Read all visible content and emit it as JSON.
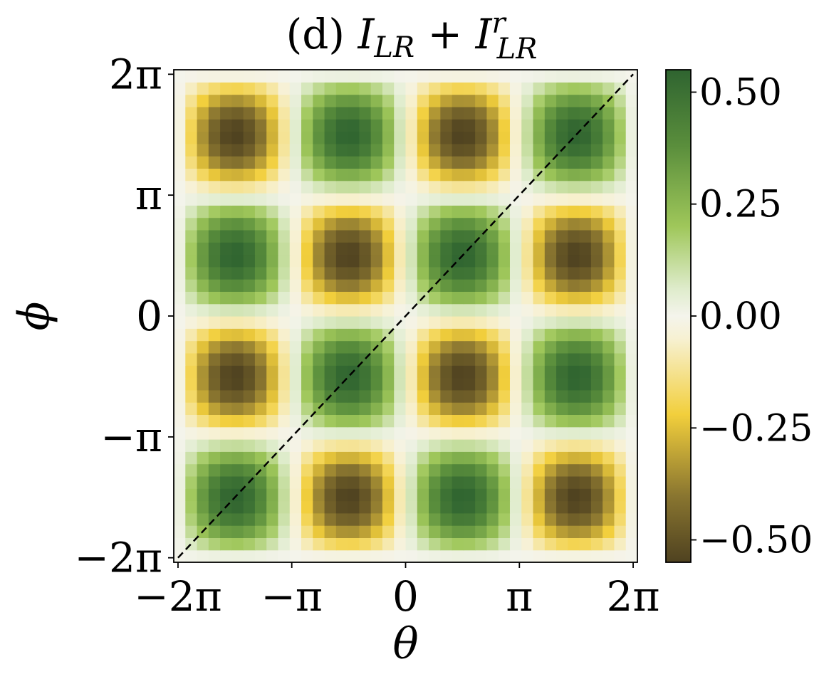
{
  "chart_data": {
    "type": "heatmap",
    "title": "(d) I_LR + I^r_LR",
    "title_parts": {
      "prefix": "(d) ",
      "term1": "I",
      "term1_sub": "LR",
      "plus": " + ",
      "term2": "I",
      "term2_sup": "r",
      "term2_sub": "LR"
    },
    "xlabel": "θ",
    "ylabel": "ϕ",
    "xlim": [
      -6.4,
      6.4
    ],
    "ylim": [
      -6.4,
      6.4
    ],
    "x_ticks": [
      {
        "value": -6.283,
        "label": "−2π"
      },
      {
        "value": -3.142,
        "label": "−π"
      },
      {
        "value": 0,
        "label": "0"
      },
      {
        "value": 3.142,
        "label": "π"
      },
      {
        "value": 6.283,
        "label": "2π"
      }
    ],
    "y_ticks": [
      {
        "value": -6.283,
        "label": "−2π"
      },
      {
        "value": -3.142,
        "label": "−π"
      },
      {
        "value": 0,
        "label": "0"
      },
      {
        "value": 3.142,
        "label": "π"
      },
      {
        "value": 6.283,
        "label": "2π"
      }
    ],
    "grid_size": [
      40,
      40
    ],
    "function": "I = 0.55 · sin(θ) · sin(ϕ)",
    "amplitude": 0.55,
    "value_range": [
      -0.55,
      0.55
    ],
    "diagonal_line": {
      "from": [
        -6.283,
        -6.283
      ],
      "to": [
        6.283,
        6.283
      ],
      "style": "dashed",
      "color": "#000000"
    },
    "colorbar": {
      "ticks": [
        {
          "value": 0.5,
          "label": "0.50"
        },
        {
          "value": 0.25,
          "label": "0.25"
        },
        {
          "value": 0.0,
          "label": "0.00"
        },
        {
          "value": -0.25,
          "label": "−0.25"
        },
        {
          "value": -0.5,
          "label": "−0.50"
        }
      ],
      "stops": [
        {
          "value": -0.55,
          "color": "#4f4220"
        },
        {
          "value": -0.4,
          "color": "#8a7630"
        },
        {
          "value": -0.22,
          "color": "#f2cf3c"
        },
        {
          "value": -0.05,
          "color": "#f7f1d2"
        },
        {
          "value": 0.0,
          "color": "#f4f4ec"
        },
        {
          "value": 0.06,
          "color": "#dfeccc"
        },
        {
          "value": 0.2,
          "color": "#9fc75a"
        },
        {
          "value": 0.38,
          "color": "#5a8e3c"
        },
        {
          "value": 0.55,
          "color": "#2f6430"
        }
      ]
    }
  }
}
